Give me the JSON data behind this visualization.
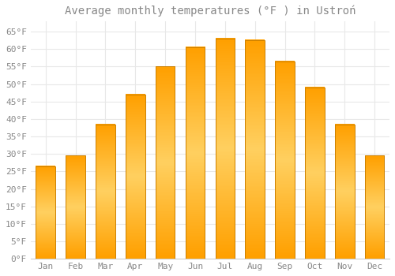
{
  "title": "Average monthly temperatures (°F ) in Ustroń",
  "months": [
    "Jan",
    "Feb",
    "Mar",
    "Apr",
    "May",
    "Jun",
    "Jul",
    "Aug",
    "Sep",
    "Oct",
    "Nov",
    "Dec"
  ],
  "values": [
    26.5,
    29.5,
    38.5,
    47.0,
    55.0,
    60.5,
    63.0,
    62.5,
    56.5,
    49.0,
    38.5,
    29.5
  ],
  "bar_color_light": "#FFD060",
  "bar_color_dark": "#FFA000",
  "bar_edge_color": "#CC8000",
  "background_color": "#FFFFFF",
  "grid_color": "#E8E8E8",
  "text_color": "#888888",
  "yticks": [
    0,
    5,
    10,
    15,
    20,
    25,
    30,
    35,
    40,
    45,
    50,
    55,
    60,
    65
  ],
  "ylim": [
    0,
    68
  ],
  "title_fontsize": 10,
  "tick_fontsize": 8,
  "font_family": "monospace"
}
